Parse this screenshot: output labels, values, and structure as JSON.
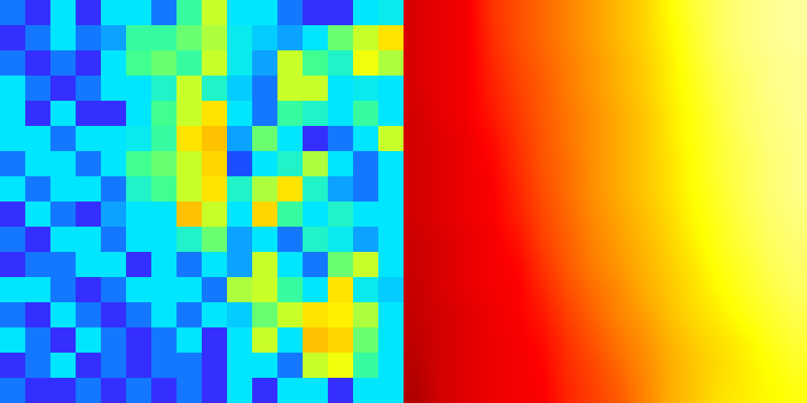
{
  "chart_data": [
    {
      "type": "heatmap",
      "tick_labels": false,
      "zlim": [
        0,
        1
      ],
      "z": [
        [
          0.25,
          0.12,
          0.38,
          0.12,
          0.38,
          0.38,
          0.25,
          0.5,
          0.62,
          0.38,
          0.38,
          0.25,
          0.12,
          0.12,
          0.38,
          0.4
        ],
        [
          0.12,
          0.25,
          0.38,
          0.25,
          0.3,
          0.5,
          0.5,
          0.55,
          0.6,
          0.4,
          0.35,
          0.3,
          0.38,
          0.55,
          0.62,
          0.7
        ],
        [
          0.25,
          0.12,
          0.25,
          0.12,
          0.38,
          0.52,
          0.55,
          0.5,
          0.62,
          0.4,
          0.3,
          0.62,
          0.52,
          0.45,
          0.65,
          0.6
        ],
        [
          0.38,
          0.25,
          0.12,
          0.25,
          0.38,
          0.38,
          0.45,
          0.62,
          0.45,
          0.35,
          0.25,
          0.62,
          0.62,
          0.38,
          0.4,
          0.38
        ],
        [
          0.38,
          0.12,
          0.38,
          0.12,
          0.12,
          0.38,
          0.52,
          0.62,
          0.7,
          0.38,
          0.25,
          0.5,
          0.45,
          0.38,
          0.5,
          0.38
        ],
        [
          0.38,
          0.38,
          0.25,
          0.38,
          0.38,
          0.4,
          0.5,
          0.7,
          0.75,
          0.3,
          0.55,
          0.38,
          0.12,
          0.25,
          0.38,
          0.62
        ],
        [
          0.25,
          0.38,
          0.38,
          0.25,
          0.38,
          0.52,
          0.55,
          0.62,
          0.72,
          0.2,
          0.38,
          0.45,
          0.6,
          0.38,
          0.25,
          0.38
        ],
        [
          0.38,
          0.25,
          0.38,
          0.38,
          0.25,
          0.45,
          0.52,
          0.62,
          0.7,
          0.45,
          0.6,
          0.7,
          0.45,
          0.3,
          0.25,
          0.38
        ],
        [
          0.12,
          0.38,
          0.25,
          0.12,
          0.3,
          0.38,
          0.38,
          0.75,
          0.62,
          0.38,
          0.72,
          0.5,
          0.38,
          0.45,
          0.38,
          0.38
        ],
        [
          0.25,
          0.12,
          0.38,
          0.38,
          0.25,
          0.38,
          0.38,
          0.45,
          0.55,
          0.3,
          0.38,
          0.25,
          0.45,
          0.4,
          0.3,
          0.38
        ],
        [
          0.12,
          0.25,
          0.25,
          0.38,
          0.38,
          0.12,
          0.38,
          0.25,
          0.38,
          0.3,
          0.62,
          0.38,
          0.25,
          0.55,
          0.62,
          0.38
        ],
        [
          0.38,
          0.38,
          0.25,
          0.12,
          0.25,
          0.38,
          0.38,
          0.38,
          0.25,
          0.6,
          0.62,
          0.5,
          0.38,
          0.7,
          0.4,
          0.35
        ],
        [
          0.25,
          0.12,
          0.38,
          0.25,
          0.12,
          0.25,
          0.38,
          0.25,
          0.38,
          0.35,
          0.55,
          0.62,
          0.7,
          0.68,
          0.6,
          0.38
        ],
        [
          0.38,
          0.25,
          0.12,
          0.38,
          0.25,
          0.12,
          0.25,
          0.38,
          0.12,
          0.38,
          0.62,
          0.38,
          0.75,
          0.72,
          0.55,
          0.38
        ],
        [
          0.12,
          0.25,
          0.38,
          0.12,
          0.25,
          0.12,
          0.25,
          0.25,
          0.12,
          0.38,
          0.38,
          0.25,
          0.62,
          0.65,
          0.5,
          0.38
        ],
        [
          0.25,
          0.12,
          0.12,
          0.25,
          0.12,
          0.25,
          0.12,
          0.25,
          0.12,
          0.38,
          0.12,
          0.38,
          0.38,
          0.12,
          0.38,
          0.38
        ]
      ]
    },
    {
      "type": "heatmap",
      "tick_labels": false,
      "zlim": [
        0,
        1
      ],
      "z": [
        [
          0.31,
          0.33,
          0.35,
          0.44,
          0.48,
          0.52,
          0.56,
          0.6,
          0.64,
          0.68,
          0.74,
          0.8,
          0.84,
          0.87,
          0.89,
          0.9
        ],
        [
          0.31,
          0.33,
          0.35,
          0.43,
          0.48,
          0.52,
          0.56,
          0.6,
          0.64,
          0.68,
          0.73,
          0.79,
          0.84,
          0.87,
          0.89,
          0.9
        ],
        [
          0.31,
          0.33,
          0.35,
          0.42,
          0.47,
          0.51,
          0.55,
          0.59,
          0.63,
          0.67,
          0.72,
          0.78,
          0.83,
          0.86,
          0.88,
          0.89
        ],
        [
          0.31,
          0.33,
          0.35,
          0.41,
          0.46,
          0.5,
          0.55,
          0.59,
          0.63,
          0.67,
          0.72,
          0.77,
          0.82,
          0.85,
          0.88,
          0.89
        ],
        [
          0.3,
          0.33,
          0.35,
          0.4,
          0.45,
          0.5,
          0.54,
          0.58,
          0.62,
          0.66,
          0.71,
          0.76,
          0.81,
          0.85,
          0.87,
          0.89
        ],
        [
          0.3,
          0.32,
          0.34,
          0.38,
          0.44,
          0.49,
          0.54,
          0.58,
          0.62,
          0.66,
          0.71,
          0.76,
          0.8,
          0.84,
          0.87,
          0.88
        ],
        [
          0.3,
          0.32,
          0.34,
          0.37,
          0.43,
          0.49,
          0.53,
          0.58,
          0.62,
          0.66,
          0.7,
          0.75,
          0.8,
          0.83,
          0.86,
          0.88
        ],
        [
          0.3,
          0.32,
          0.34,
          0.36,
          0.42,
          0.48,
          0.53,
          0.58,
          0.62,
          0.66,
          0.7,
          0.75,
          0.79,
          0.83,
          0.86,
          0.88
        ],
        [
          0.3,
          0.32,
          0.34,
          0.36,
          0.41,
          0.47,
          0.52,
          0.57,
          0.61,
          0.65,
          0.69,
          0.74,
          0.78,
          0.82,
          0.85,
          0.87
        ],
        [
          0.29,
          0.31,
          0.33,
          0.35,
          0.39,
          0.46,
          0.51,
          0.56,
          0.6,
          0.64,
          0.68,
          0.73,
          0.77,
          0.81,
          0.84,
          0.86
        ],
        [
          0.29,
          0.31,
          0.33,
          0.35,
          0.37,
          0.44,
          0.5,
          0.55,
          0.59,
          0.63,
          0.67,
          0.71,
          0.76,
          0.79,
          0.83,
          0.85
        ],
        [
          0.28,
          0.31,
          0.33,
          0.35,
          0.36,
          0.42,
          0.48,
          0.53,
          0.57,
          0.62,
          0.66,
          0.7,
          0.74,
          0.78,
          0.81,
          0.84
        ],
        [
          0.28,
          0.3,
          0.32,
          0.34,
          0.36,
          0.4,
          0.46,
          0.51,
          0.56,
          0.6,
          0.65,
          0.69,
          0.72,
          0.76,
          0.79,
          0.82
        ],
        [
          0.27,
          0.3,
          0.32,
          0.34,
          0.35,
          0.38,
          0.44,
          0.49,
          0.54,
          0.58,
          0.63,
          0.67,
          0.7,
          0.73,
          0.77,
          0.8
        ],
        [
          0.26,
          0.3,
          0.32,
          0.34,
          0.35,
          0.37,
          0.43,
          0.47,
          0.52,
          0.57,
          0.62,
          0.66,
          0.69,
          0.72,
          0.75,
          0.78
        ],
        [
          0.25,
          0.3,
          0.32,
          0.34,
          0.35,
          0.36,
          0.42,
          0.46,
          0.5,
          0.56,
          0.62,
          0.66,
          0.7,
          0.72,
          0.74,
          0.76
        ]
      ]
    }
  ]
}
